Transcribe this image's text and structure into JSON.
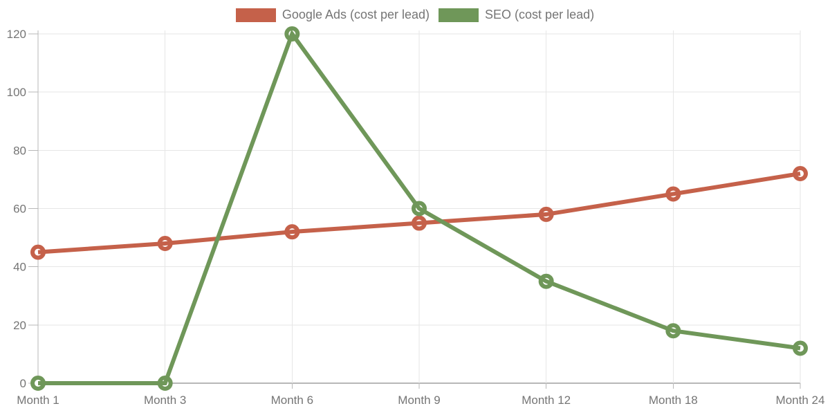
{
  "chart_data": {
    "type": "line",
    "title": "",
    "categories": [
      "Month 1",
      "Month 3",
      "Month 6",
      "Month 9",
      "Month 12",
      "Month 18",
      "Month 24"
    ],
    "series": [
      {
        "name": "Google Ads (cost per lead)",
        "color": "#c5614a",
        "values": [
          45,
          48,
          52,
          55,
          58,
          65,
          72
        ]
      },
      {
        "name": "SEO (cost per lead)",
        "color": "#6f9759",
        "values": [
          0,
          0,
          120,
          60,
          35,
          18,
          12
        ]
      }
    ],
    "ylim": [
      0,
      120
    ],
    "yticks": [
      0,
      20,
      40,
      60,
      80,
      100,
      120
    ],
    "xlabel": "",
    "ylabel": "",
    "grid": true,
    "legend_position": "top",
    "colors": {
      "grid": "#e6e6e6",
      "axis": "#b7b7b7",
      "label": "#757575",
      "background": "#ffffff"
    }
  }
}
